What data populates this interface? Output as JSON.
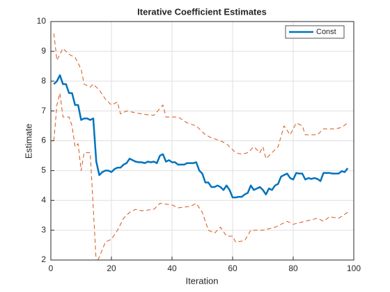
{
  "chart_data": {
    "type": "line",
    "title": "Iterative Coefficient Estimates",
    "x_label": "Iteration",
    "y_label": "Estimate",
    "xlim": [
      0,
      100
    ],
    "xticks": [
      0,
      20,
      40,
      60,
      80,
      100
    ],
    "ylim": [
      2,
      10
    ],
    "yticks": [
      2,
      3,
      4,
      5,
      6,
      7,
      8,
      9,
      10
    ],
    "grid": true,
    "legend": "top-right",
    "series": [
      {
        "name": "Const",
        "color": "#0072bd",
        "style": "solid",
        "x": [
          1,
          2,
          3,
          4,
          5,
          6,
          7,
          8,
          9,
          10,
          11,
          12,
          13,
          14,
          15,
          16,
          17,
          18,
          19,
          20,
          21,
          22,
          23,
          24,
          25,
          26,
          27,
          28,
          29,
          30,
          31,
          32,
          33,
          34,
          35,
          36,
          37,
          38,
          39,
          40,
          41,
          42,
          43,
          44,
          45,
          46,
          47,
          48,
          49,
          50,
          51,
          52,
          53,
          54,
          55,
          56,
          57,
          58,
          59,
          60,
          61,
          62,
          63,
          64,
          65,
          66,
          67,
          68,
          69,
          70,
          71,
          72,
          73,
          74,
          75,
          76,
          77,
          78,
          79,
          80,
          81,
          82,
          83,
          84,
          85,
          86,
          87,
          88,
          89,
          90,
          91,
          92,
          93,
          94,
          95,
          96,
          97,
          98
        ],
        "values": [
          7.9,
          8.0,
          8.2,
          7.9,
          7.9,
          7.6,
          7.6,
          7.2,
          7.2,
          6.7,
          6.75,
          6.75,
          6.7,
          6.75,
          5.3,
          4.85,
          4.95,
          5.0,
          5.0,
          4.95,
          5.05,
          5.1,
          5.1,
          5.2,
          5.25,
          5.4,
          5.35,
          5.3,
          5.28,
          5.28,
          5.25,
          5.3,
          5.28,
          5.3,
          5.25,
          5.5,
          5.55,
          5.3,
          5.35,
          5.28,
          5.28,
          5.2,
          5.2,
          5.2,
          5.25,
          5.25,
          5.25,
          5.28,
          5.0,
          4.9,
          4.6,
          4.6,
          4.45,
          4.45,
          4.5,
          4.45,
          4.35,
          4.5,
          4.35,
          4.1,
          4.1,
          4.12,
          4.12,
          4.2,
          4.25,
          4.5,
          4.35,
          4.4,
          4.45,
          4.35,
          4.2,
          4.4,
          4.35,
          4.5,
          4.55,
          4.8,
          4.85,
          4.9,
          4.75,
          4.7,
          4.92,
          4.9,
          4.9,
          4.7,
          4.75,
          4.72,
          4.75,
          4.72,
          4.65,
          4.92,
          4.92,
          4.92,
          4.9,
          4.9,
          4.9,
          4.98,
          4.95,
          5.08
        ]
      },
      {
        "color": "#d95319",
        "style": "dashed",
        "x": [
          1,
          2,
          4,
          6,
          8,
          10,
          11,
          13,
          14,
          16,
          18,
          20,
          22,
          23,
          25,
          30,
          34,
          37,
          38,
          42,
          45,
          48,
          51,
          53,
          56,
          58,
          61,
          63,
          65,
          67,
          69,
          70,
          71,
          73,
          75,
          77,
          79,
          81,
          83,
          84,
          88,
          90,
          94,
          96,
          98
        ],
        "values": [
          9.6,
          8.7,
          9.1,
          8.9,
          8.8,
          8.4,
          7.9,
          7.8,
          7.9,
          7.7,
          7.4,
          7.2,
          7.3,
          6.9,
          7.0,
          6.9,
          6.85,
          7.2,
          6.8,
          6.8,
          6.6,
          6.5,
          6.2,
          6.1,
          6.0,
          5.9,
          5.6,
          5.55,
          5.6,
          5.8,
          5.6,
          5.8,
          5.4,
          5.6,
          5.8,
          6.5,
          6.2,
          6.6,
          6.5,
          6.2,
          6.2,
          6.4,
          6.4,
          6.45,
          6.6
        ]
      },
      {
        "color": "#d95319",
        "style": "dashed",
        "x": [
          1,
          2,
          3,
          4,
          6,
          7,
          8,
          9,
          10,
          11,
          13,
          15,
          16,
          18,
          20,
          22,
          24,
          26,
          28,
          30,
          34,
          36,
          40,
          42,
          46,
          48,
          50,
          52,
          54,
          56,
          58,
          60,
          61,
          64,
          66,
          70,
          74,
          78,
          80,
          84,
          88,
          90,
          92,
          95,
          98
        ],
        "values": [
          6.0,
          7.2,
          7.6,
          6.8,
          6.8,
          6.5,
          5.8,
          5.9,
          5.0,
          5.6,
          5.6,
          1.9,
          2.1,
          2.6,
          2.7,
          3.0,
          3.4,
          3.6,
          3.7,
          3.65,
          3.7,
          3.9,
          3.85,
          3.75,
          3.8,
          3.9,
          3.6,
          3.0,
          2.9,
          3.1,
          2.8,
          2.8,
          2.6,
          2.65,
          3.0,
          3.0,
          3.1,
          3.3,
          3.2,
          3.3,
          3.4,
          3.3,
          3.45,
          3.4,
          3.6
        ]
      }
    ]
  }
}
